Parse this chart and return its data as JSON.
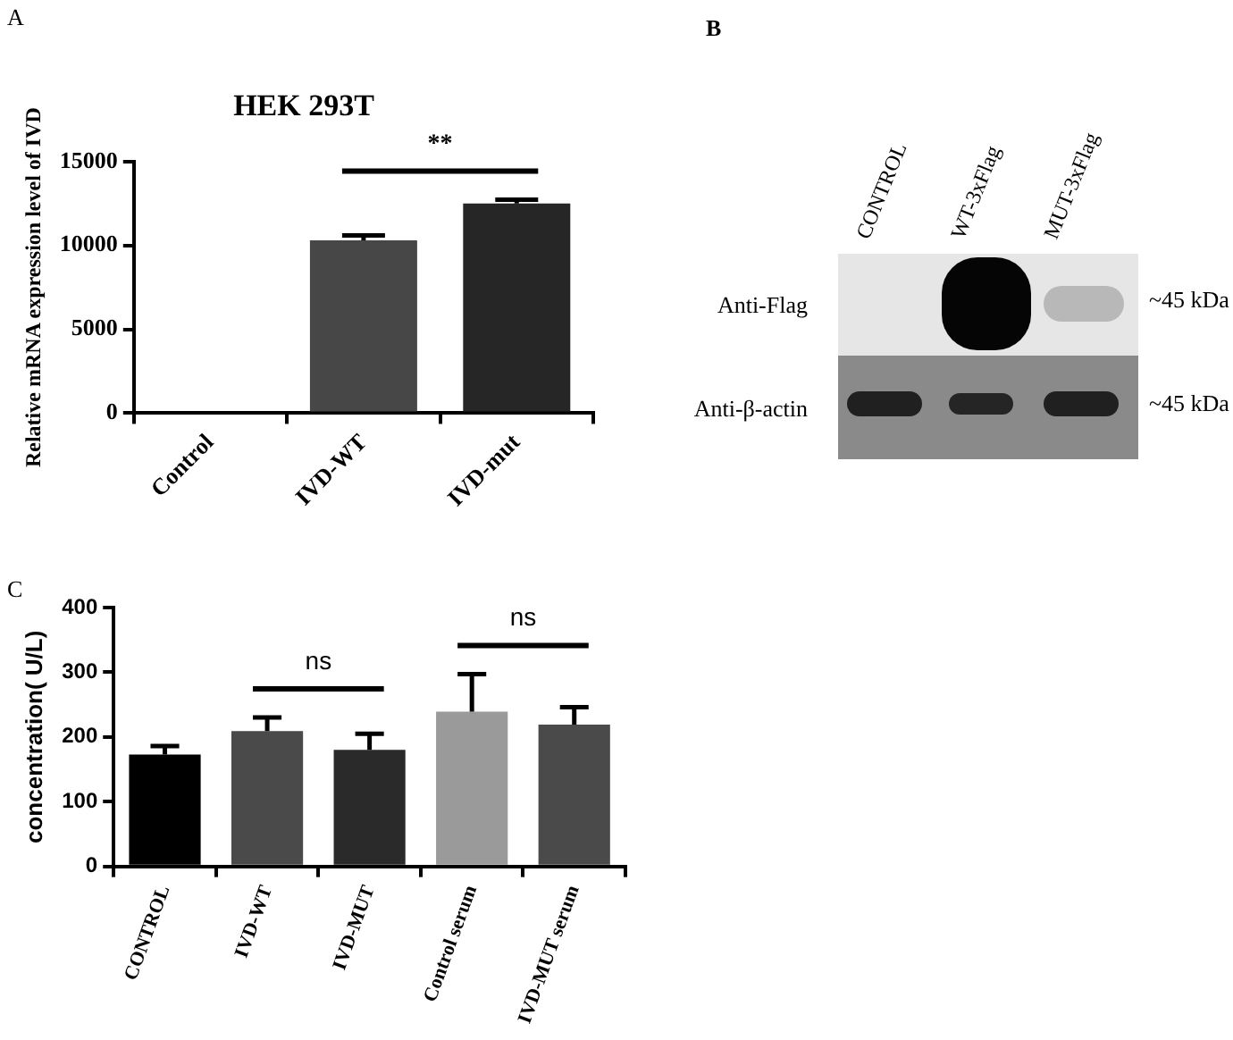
{
  "chart_data": [
    {
      "type": "bar",
      "title": "HEK 293T",
      "ylabel": "Relative mRNA expression level of IVD",
      "categories": [
        "Control",
        "IVD-WT",
        "IVD-mut"
      ],
      "values": [
        0,
        10300,
        12500
      ],
      "errors": [
        null,
        300,
        220
      ],
      "colors": [
        "#000000",
        "#474747",
        "#262626"
      ],
      "ylim": [
        0,
        15000
      ],
      "yticks": [
        0,
        5000,
        10000,
        15000
      ],
      "grid": false,
      "legend": false,
      "annotations": [
        "A",
        "**"
      ]
    },
    {
      "type": "other",
      "annotations": [
        "B",
        "CONTROL",
        "WT-3xFlag",
        "MUT-3xFlag",
        "Anti-Flag",
        "Anti-β-actin",
        "~45 kDa",
        "~45 kDa"
      ]
    },
    {
      "type": "bar",
      "ylabel": "concentration( U/L)",
      "categories": [
        "CONTROL",
        "IVD-WT",
        "IVD-MUT",
        "Control serum",
        "IVD-MUT serum"
      ],
      "values": [
        173,
        209,
        180,
        239,
        219
      ],
      "errors": [
        13,
        21,
        25,
        58,
        27
      ],
      "colors": [
        "#000000",
        "#4a4a4a",
        "#2a2a2a",
        "#9a9a9a",
        "#4a4a4a"
      ],
      "ylim": [
        0,
        400
      ],
      "yticks": [
        0,
        100,
        200,
        300,
        400
      ],
      "grid": false,
      "legend": false,
      "annotations": [
        "C",
        "ns",
        "ns"
      ]
    }
  ]
}
